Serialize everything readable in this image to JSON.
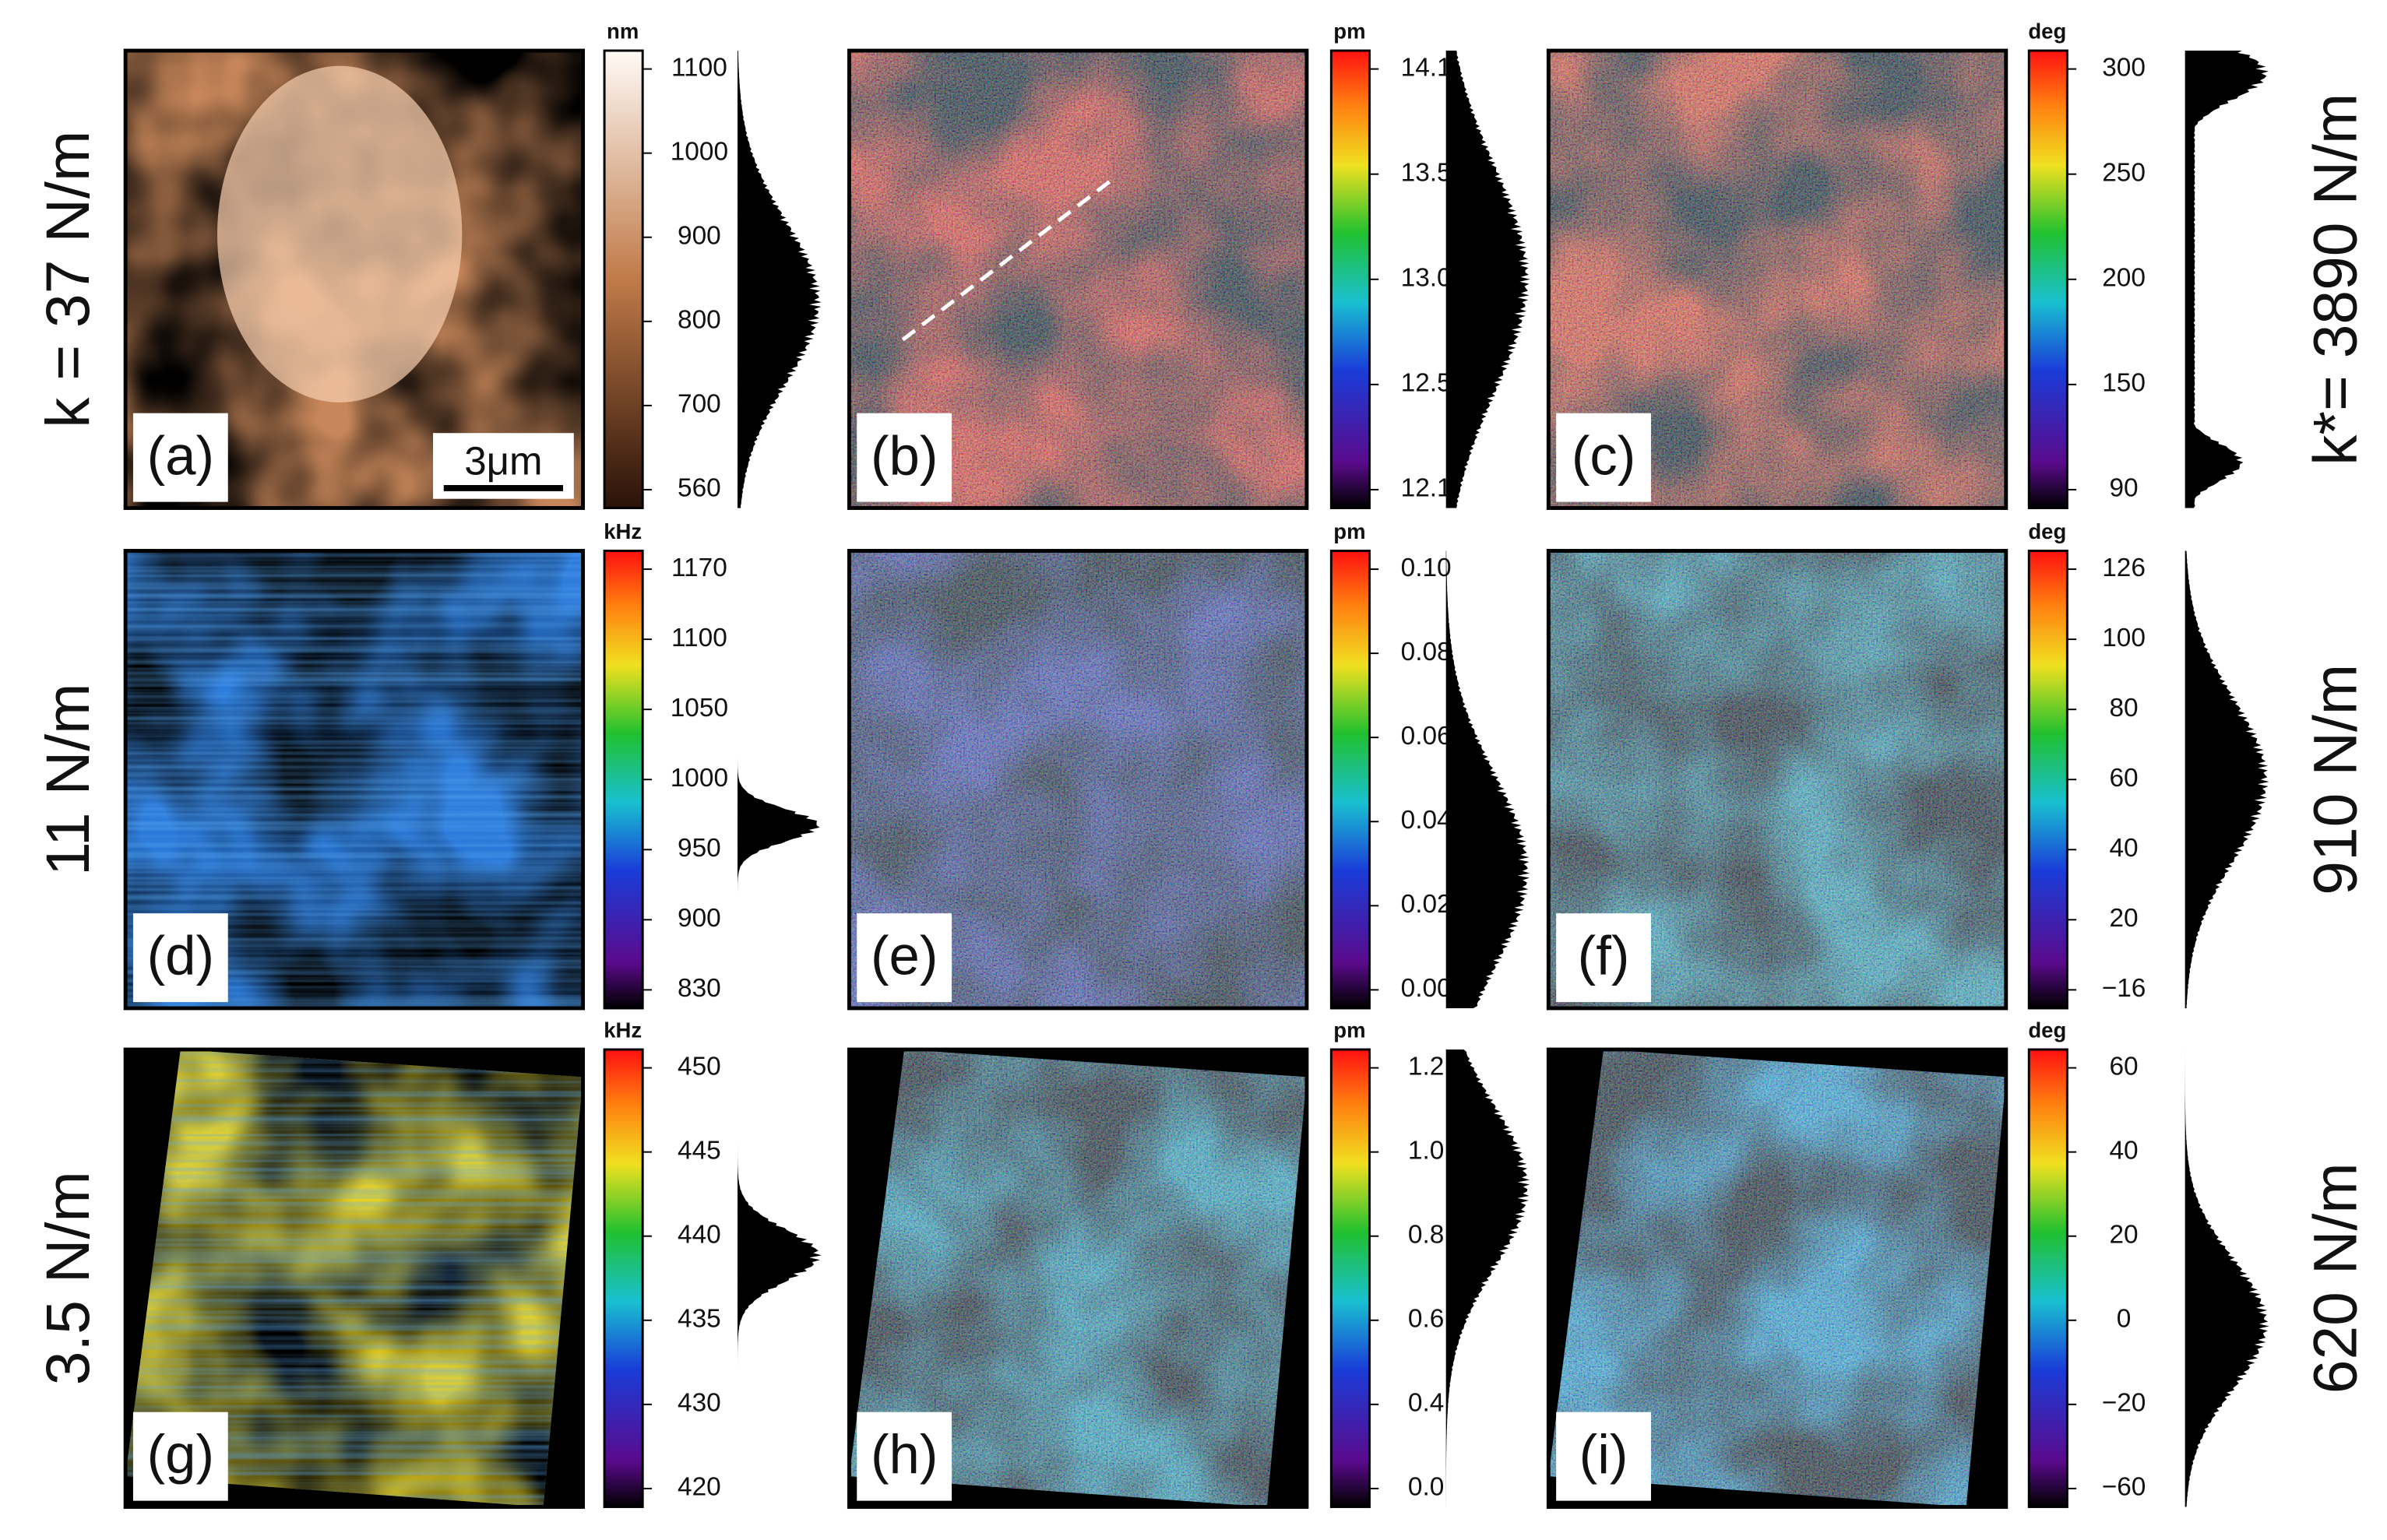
{
  "row_labels_left": [
    "k = 37 N/m",
    "11 N/m",
    "3.5 N/m"
  ],
  "row_labels_right": [
    "k*= 3890 N/m",
    "910 N/m",
    "620 N/m"
  ],
  "scale_bar": "3μm",
  "panels": [
    {
      "label": "(a)",
      "unit": "nm",
      "ticks": [
        "1100",
        "1000",
        "900",
        "800",
        "700",
        "560"
      ]
    },
    {
      "label": "(b)",
      "unit": "pm",
      "ticks": [
        "14.1",
        "13.5",
        "13.0",
        "12.5",
        "12.1"
      ]
    },
    {
      "label": "(c)",
      "unit": "deg",
      "ticks": [
        "300",
        "250",
        "200",
        "150",
        "90"
      ]
    },
    {
      "label": "(d)",
      "unit": "kHz",
      "ticks": [
        "1170",
        "1100",
        "1050",
        "1000",
        "950",
        "900",
        "830"
      ]
    },
    {
      "label": "(e)",
      "unit": "pm",
      "ticks": [
        "0.10",
        "0.08",
        "0.06",
        "0.04",
        "0.02",
        "0.00"
      ]
    },
    {
      "label": "(f)",
      "unit": "deg",
      "ticks": [
        "126",
        "100",
        "80",
        "60",
        "40",
        "20",
        "−16"
      ]
    },
    {
      "label": "(g)",
      "unit": "kHz",
      "ticks": [
        "450",
        "445",
        "440",
        "435",
        "430",
        "420"
      ]
    },
    {
      "label": "(h)",
      "unit": "pm",
      "ticks": [
        "1.2",
        "1.0",
        "0.8",
        "0.6",
        "0.4",
        "0.0"
      ]
    },
    {
      "label": "(i)",
      "unit": "deg",
      "ticks": [
        "60",
        "40",
        "20",
        "0",
        "−20",
        "−60"
      ]
    }
  ]
}
